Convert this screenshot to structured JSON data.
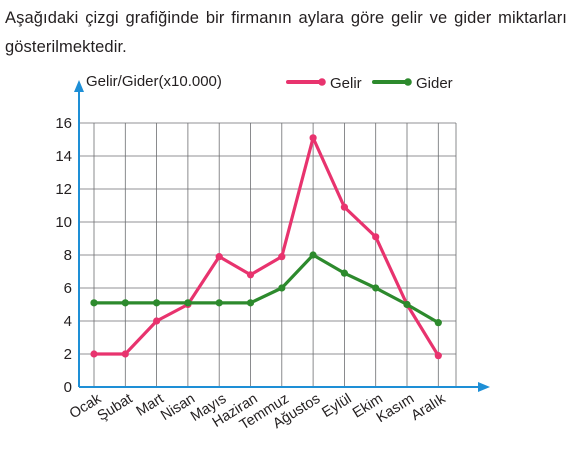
{
  "intro": {
    "text": "Aşağıdaki çizgi grafiğinde bir firmanın aylara göre gelir ve gider miktarları gösterilmektedir."
  },
  "chart_data": {
    "type": "line",
    "ylabel": "Gelir/Gider(x10.000)",
    "categories": [
      "Ocak",
      "Şubat",
      "Mart",
      "Nisan",
      "Mayıs",
      "Haziran",
      "Temmuz",
      "Ağustos",
      "Eylül",
      "Ekim",
      "Kasım",
      "Aralık"
    ],
    "yticks": [
      0,
      2,
      4,
      6,
      8,
      10,
      12,
      14,
      16
    ],
    "ylim": [
      0,
      16
    ],
    "grid": true,
    "legend_position": "top",
    "series": [
      {
        "name": "Gelir",
        "color": "#e8336e",
        "values": [
          2,
          2,
          4,
          5,
          7.9,
          6.8,
          7.9,
          15.1,
          10.9,
          9.1,
          5,
          1.9
        ]
      },
      {
        "name": "Gider",
        "color": "#2d8a2d",
        "values": [
          5.1,
          5.1,
          5.1,
          5.1,
          5.1,
          5.1,
          6,
          8,
          6.9,
          6,
          5,
          3.9
        ]
      }
    ],
    "axis_color": "#1e8fd6"
  }
}
